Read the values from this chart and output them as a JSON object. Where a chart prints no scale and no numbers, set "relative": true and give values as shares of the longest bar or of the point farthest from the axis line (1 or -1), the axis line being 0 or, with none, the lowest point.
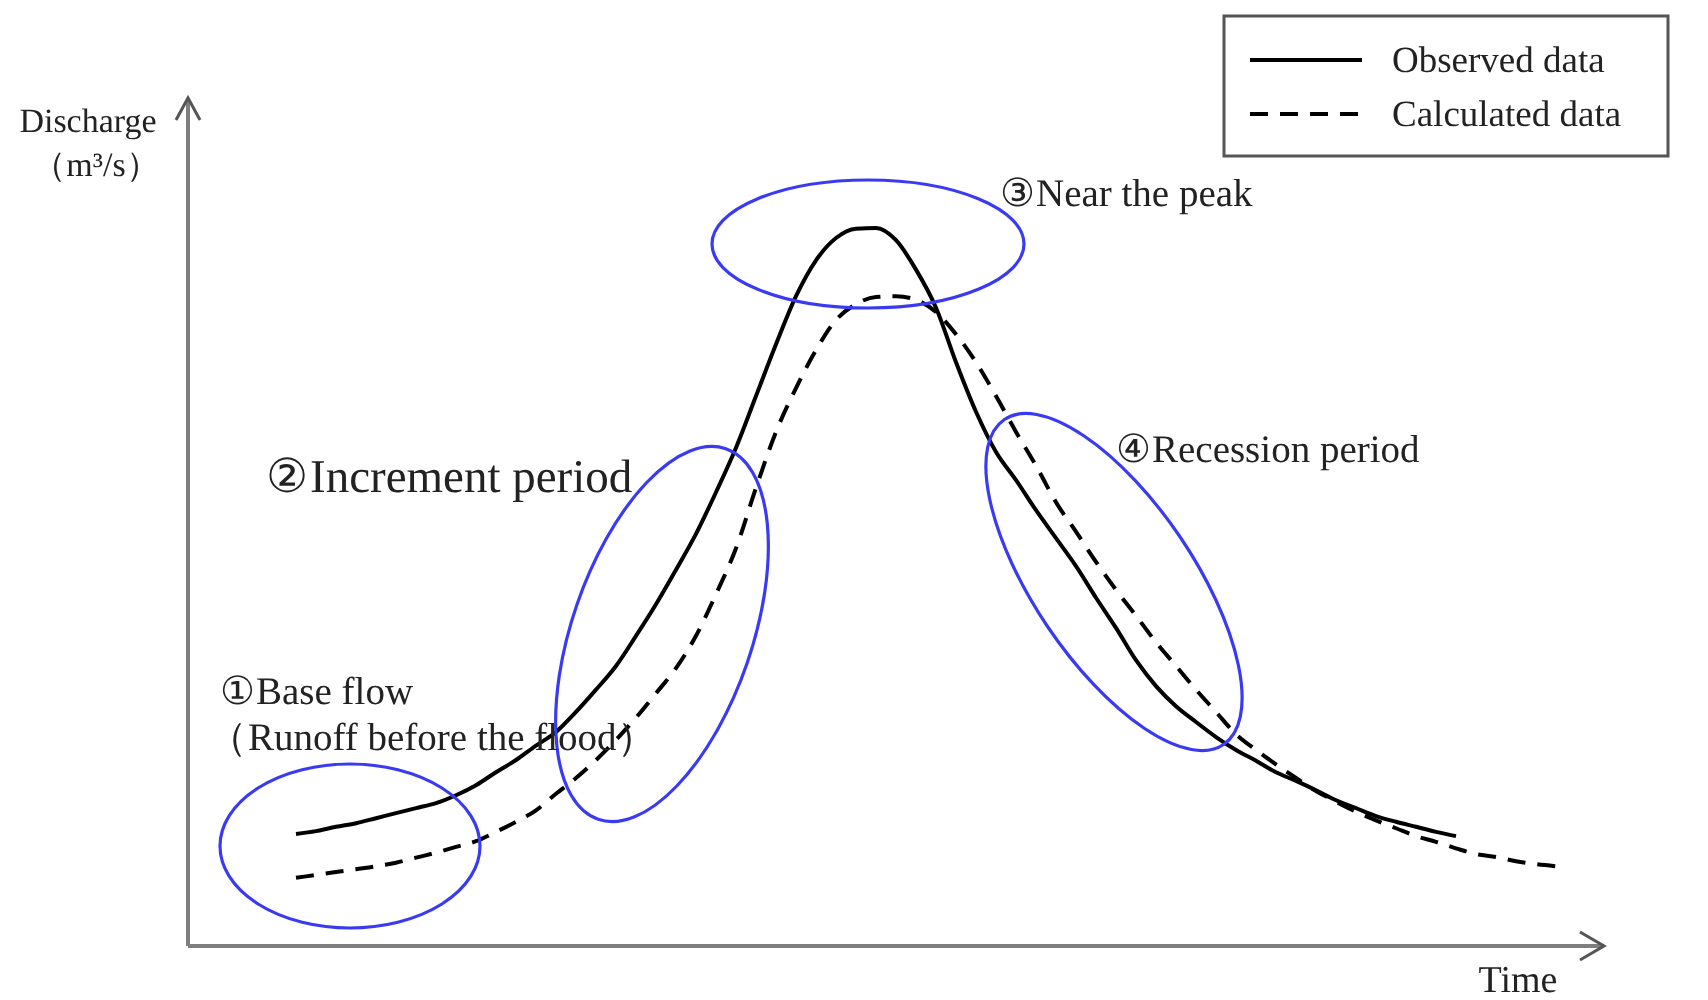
{
  "chart_data": {
    "type": "line",
    "relative": true,
    "xlabel": "Time",
    "ylabel": "Discharge\n（m³/s）",
    "legend": "top right",
    "categories": [
      null,
      null,
      null,
      null,
      null,
      null,
      null,
      null,
      null,
      null,
      null,
      null,
      null,
      null,
      null,
      null,
      null,
      null,
      null,
      null,
      null,
      null,
      null,
      null,
      null,
      null,
      null,
      null,
      null,
      null,
      null,
      null,
      null,
      null,
      null,
      null,
      null,
      null,
      null,
      null,
      null,
      null,
      null,
      null,
      null,
      null,
      null,
      null,
      null,
      null,
      null,
      null,
      null,
      null,
      null,
      null,
      null,
      null,
      null,
      null,
      null,
      null,
      null,
      null
    ],
    "series": [
      {
        "name": "Observed data",
        "color": "#000000",
        "line_style": "solid",
        "values": [
          0.156,
          0.16,
          0.166,
          0.171,
          0.178,
          0.185,
          0.192,
          0.199,
          0.21,
          0.224,
          0.242,
          0.259,
          0.279,
          0.298,
          0.326,
          0.357,
          0.39,
          0.432,
          0.476,
          0.524,
          0.574,
          0.632,
          0.694,
          0.766,
          0.838,
          0.905,
          0.955,
          0.986,
          0.999,
          1,
          0.983,
          0.942,
          0.889,
          0.813,
          0.744,
          0.688,
          0.649,
          0.607,
          0.568,
          0.529,
          0.485,
          0.443,
          0.398,
          0.362,
          0.334,
          0.312,
          0.291,
          0.273,
          0.258,
          0.242,
          0.23,
          0.217,
          0.203,
          0.192,
          0.181,
          0.173,
          0.166,
          0.159,
          0.153,
          null,
          null,
          null,
          null,
          null
        ]
      },
      {
        "name": "Calculated data",
        "color": "#000000",
        "line_style": "dashed",
        "values": [
          0.095,
          0.099,
          0.103,
          0.107,
          0.111,
          0.116,
          0.123,
          0.13,
          0.138,
          0.146,
          0.159,
          0.173,
          0.189,
          0.212,
          0.234,
          0.259,
          0.287,
          0.318,
          0.352,
          0.387,
          0.432,
          0.49,
          0.554,
          0.638,
          0.716,
          0.777,
          0.83,
          0.872,
          0.894,
          0.904,
          0.905,
          0.9,
          0.883,
          0.852,
          0.813,
          0.766,
          0.716,
          0.669,
          0.618,
          0.577,
          0.535,
          0.496,
          0.46,
          0.423,
          0.39,
          0.357,
          0.326,
          0.295,
          0.273,
          0.253,
          0.234,
          0.216,
          0.201,
          0.187,
          0.175,
          0.164,
          0.153,
          0.145,
          0.136,
          0.128,
          0.124,
          0.118,
          0.114,
          0.111
        ]
      }
    ],
    "annotations": [
      "①Base flow\n（Runoff before the flood）",
      "②Increment period",
      "③Near the peak",
      "④Recession period"
    ]
  }
}
